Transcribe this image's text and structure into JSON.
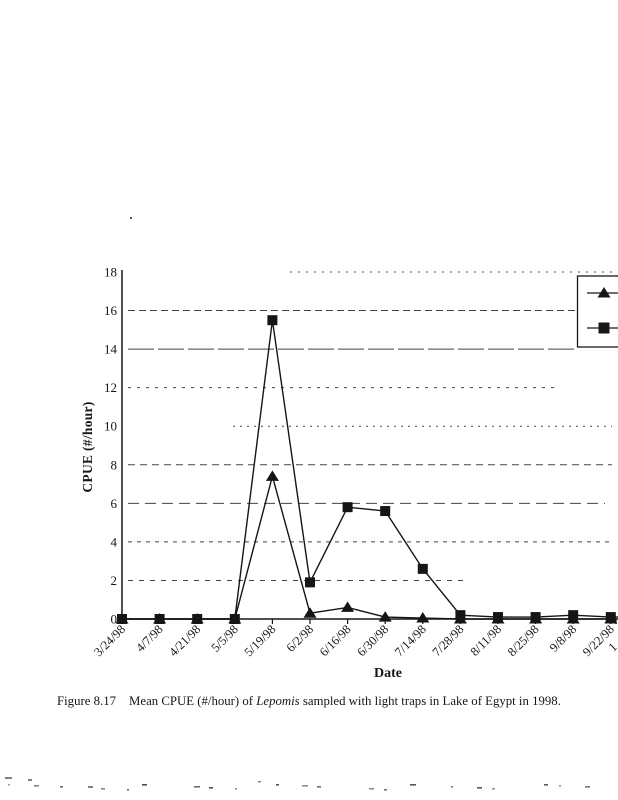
{
  "page": {
    "kind": "scanned report page with figure",
    "background_color": "#ffffff",
    "ink_color": "#161616"
  },
  "chart_data": {
    "type": "line",
    "title": "",
    "xlabel": "Date",
    "ylabel": "CPUE (#/hour)",
    "ylim": [
      0,
      18
    ],
    "yticks": [
      0,
      2,
      4,
      6,
      8,
      10,
      12,
      14,
      16,
      18
    ],
    "grid": "horizontal dashed gridlines at every 2 units",
    "legend": {
      "position": "right edge, box cut off by page edge",
      "labels_visible": false,
      "entries": [
        {
          "marker": "triangle"
        },
        {
          "marker": "square"
        }
      ]
    },
    "x_axis_cutoff_label": "1",
    "categories": [
      "3/24/98",
      "4/7/98",
      "4/21/98",
      "5/5/98",
      "5/19/98",
      "6/2/98",
      "6/16/98",
      "6/30/98",
      "7/14/98",
      "7/28/98",
      "8/11/98",
      "8/25/98",
      "9/8/98",
      "9/22/98"
    ],
    "series": [
      {
        "marker": "triangle",
        "color": "#151515",
        "values": [
          0,
          0,
          0,
          0,
          7.4,
          0.3,
          0.6,
          0.1,
          0.05,
          0,
          0,
          0,
          0,
          0
        ]
      },
      {
        "marker": "square",
        "color": "#151515",
        "values": [
          0,
          0,
          0,
          0,
          15.5,
          1.9,
          5.8,
          5.6,
          2.6,
          0.2,
          0.1,
          0.1,
          0.2,
          0.1
        ]
      }
    ]
  },
  "caption": {
    "label": "Figure 8.17",
    "body_pre": "Mean CPUE (#/hour) of ",
    "body_italic": "Lepomis",
    "body_post": " sampled with light traps in Lake of Egypt in 1998."
  }
}
